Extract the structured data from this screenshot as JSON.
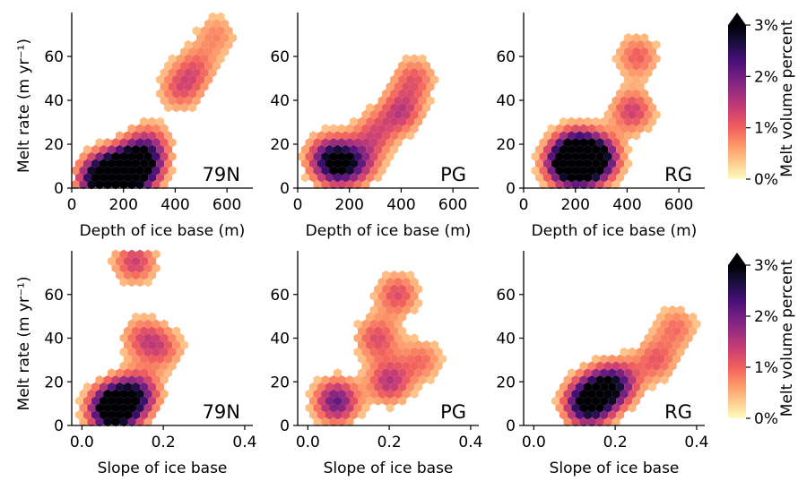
{
  "colors": {
    "colormap": [
      "#fcfdbf",
      "#feca8d",
      "#fd9668",
      "#f1605d",
      "#cd4071",
      "#9e2f7f",
      "#721f81",
      "#440f76",
      "#180f3d",
      "#000004"
    ]
  },
  "chart_data": [
    {
      "type": "heatmap",
      "subtype": "hexbin",
      "panel_label": "79N",
      "xlabel": "Depth of ice base (m)",
      "ylabel": "Melt rate (m yr⁻¹)",
      "xlim": [
        0,
        700
      ],
      "ylim": [
        0,
        80
      ],
      "xticks": [
        "0",
        "200",
        "400",
        "600"
      ],
      "yticks": [
        "0",
        "20",
        "40",
        "60"
      ],
      "density_centers": [
        {
          "x": 110,
          "y": 4,
          "w": 1.0
        },
        {
          "x": 220,
          "y": 8,
          "w": 0.85
        },
        {
          "x": 270,
          "y": 10,
          "w": 0.75
        },
        {
          "x": 170,
          "y": 7,
          "w": 0.55
        },
        {
          "x": 300,
          "y": 20,
          "w": 0.4
        },
        {
          "x": 420,
          "y": 45,
          "w": 0.35
        },
        {
          "x": 480,
          "y": 55,
          "w": 0.3
        },
        {
          "x": 560,
          "y": 70,
          "w": 0.25
        }
      ]
    },
    {
      "type": "heatmap",
      "subtype": "hexbin",
      "panel_label": "PG",
      "xlabel": "Depth of ice base (m)",
      "ylabel": "",
      "xlim": [
        0,
        700
      ],
      "ylim": [
        0,
        80
      ],
      "xticks": [
        "0",
        "200",
        "400",
        "600"
      ],
      "yticks": [
        "0",
        "20",
        "40",
        "60"
      ],
      "density_centers": [
        {
          "x": 160,
          "y": 11,
          "w": 0.75
        },
        {
          "x": 110,
          "y": 14,
          "w": 0.45
        },
        {
          "x": 240,
          "y": 12,
          "w": 0.4
        },
        {
          "x": 400,
          "y": 35,
          "w": 0.45
        },
        {
          "x": 450,
          "y": 50,
          "w": 0.35
        },
        {
          "x": 300,
          "y": 25,
          "w": 0.35
        }
      ]
    },
    {
      "type": "heatmap",
      "subtype": "hexbin",
      "panel_label": "RG",
      "xlabel": "Depth of ice base (m)",
      "ylabel": "",
      "xlim": [
        0,
        700
      ],
      "ylim": [
        0,
        80
      ],
      "xticks": [
        "0",
        "200",
        "400",
        "600"
      ],
      "yticks": [
        "0",
        "20",
        "40",
        "60"
      ],
      "density_centers": [
        {
          "x": 230,
          "y": 11,
          "w": 0.95
        },
        {
          "x": 160,
          "y": 11,
          "w": 0.8
        },
        {
          "x": 290,
          "y": 14,
          "w": 0.75
        },
        {
          "x": 200,
          "y": 18,
          "w": 0.55
        },
        {
          "x": 420,
          "y": 35,
          "w": 0.45
        },
        {
          "x": 440,
          "y": 60,
          "w": 0.35
        }
      ]
    },
    {
      "type": "heatmap",
      "subtype": "hexbin",
      "panel_label": "79N",
      "xlabel": "Slope of ice base",
      "ylabel": "Melt rate (m yr⁻¹)",
      "xlim": [
        -0.025,
        0.42
      ],
      "ylim": [
        0,
        80
      ],
      "xticks": [
        "0.0",
        "0.2",
        "0.4"
      ],
      "yticks": [
        "0",
        "20",
        "40",
        "60"
      ],
      "density_centers": [
        {
          "x": 0.07,
          "y": 7,
          "w": 1.0
        },
        {
          "x": 0.1,
          "y": 10,
          "w": 0.7
        },
        {
          "x": 0.14,
          "y": 15,
          "w": 0.55
        },
        {
          "x": 0.13,
          "y": 75,
          "w": 0.45
        },
        {
          "x": 0.15,
          "y": 40,
          "w": 0.35
        },
        {
          "x": 0.2,
          "y": 35,
          "w": 0.3
        }
      ]
    },
    {
      "type": "heatmap",
      "subtype": "hexbin",
      "panel_label": "PG",
      "xlabel": "Slope of ice base",
      "ylabel": "",
      "xlim": [
        -0.025,
        0.42
      ],
      "ylim": [
        0,
        80
      ],
      "xticks": [
        "0.0",
        "0.2",
        "0.4"
      ],
      "yticks": [
        "0",
        "20",
        "40",
        "60"
      ],
      "density_centers": [
        {
          "x": 0.07,
          "y": 11,
          "w": 0.7
        },
        {
          "x": 0.2,
          "y": 20,
          "w": 0.5
        },
        {
          "x": 0.17,
          "y": 40,
          "w": 0.4
        },
        {
          "x": 0.22,
          "y": 60,
          "w": 0.4
        },
        {
          "x": 0.28,
          "y": 30,
          "w": 0.3
        }
      ]
    },
    {
      "type": "heatmap",
      "subtype": "hexbin",
      "panel_label": "RG",
      "xlabel": "Slope of ice base",
      "ylabel": "",
      "xlim": [
        -0.025,
        0.42
      ],
      "ylim": [
        0,
        80
      ],
      "xticks": [
        "0.0",
        "0.2",
        "0.4"
      ],
      "yticks": [
        "0",
        "20",
        "40",
        "60"
      ],
      "density_centers": [
        {
          "x": 0.13,
          "y": 10,
          "w": 1.0
        },
        {
          "x": 0.17,
          "y": 16,
          "w": 0.7
        },
        {
          "x": 0.21,
          "y": 20,
          "w": 0.5
        },
        {
          "x": 0.3,
          "y": 30,
          "w": 0.35
        },
        {
          "x": 0.35,
          "y": 45,
          "w": 0.3
        }
      ]
    },
    {
      "type": "colorbar",
      "label": "Melt volume percent",
      "ticks": [
        "0%",
        "1%",
        "2%",
        "3%"
      ],
      "range": [
        0,
        3
      ],
      "extend": "max"
    },
    {
      "type": "colorbar",
      "label": "Melt volume percent",
      "ticks": [
        "0%",
        "1%",
        "2%",
        "3%"
      ],
      "range": [
        0,
        3
      ],
      "extend": "max"
    }
  ]
}
